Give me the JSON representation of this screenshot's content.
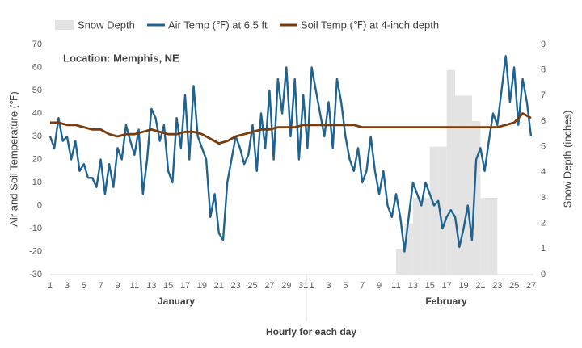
{
  "chart_data": {
    "type": "combo",
    "annotation": "Location: Memphis, NE",
    "ylabel": "Air and Soil Temperature (℉)",
    "y2label": "Snow Depth (inches)",
    "xlabel": "Hourly for each day",
    "month_labels": [
      "January",
      "February"
    ],
    "xlim": [
      1,
      58
    ],
    "xticks": [
      1,
      3,
      5,
      7,
      9,
      11,
      13,
      15,
      17,
      19,
      21,
      23,
      25,
      27,
      29,
      31,
      {
        "value": 32,
        "label": "1"
      },
      {
        "value": 34,
        "label": "3"
      },
      {
        "value": 36,
        "label": "5"
      },
      {
        "value": 38,
        "label": "7"
      },
      {
        "value": 40,
        "label": "9"
      },
      {
        "value": 42,
        "label": "11"
      },
      {
        "value": 44,
        "label": "13"
      },
      {
        "value": 46,
        "label": "15"
      },
      {
        "value": 48,
        "label": "17"
      },
      {
        "value": 50,
        "label": "19"
      },
      {
        "value": 52,
        "label": "21"
      },
      {
        "value": 54,
        "label": "23"
      },
      {
        "value": 56,
        "label": "25"
      },
      {
        "value": 58,
        "label": "27"
      }
    ],
    "ylim": [
      -30,
      70
    ],
    "yticks": [
      -30,
      -20,
      -10,
      0,
      10,
      20,
      30,
      40,
      50,
      60,
      70
    ],
    "y2lim": [
      0,
      9
    ],
    "y2ticks": [
      0,
      1,
      2,
      3,
      4,
      5,
      6,
      7,
      8,
      9
    ],
    "grid": false,
    "series": [
      {
        "name": "Snow Depth",
        "type": "bar",
        "axis": "y2",
        "color": "#e3e3e3",
        "x": [
          42,
          43,
          44,
          45,
          46,
          47,
          48,
          49,
          50,
          51,
          52,
          53
        ],
        "values": [
          1,
          2,
          3,
          3,
          5,
          5,
          8,
          7,
          7,
          6,
          3,
          3
        ]
      },
      {
        "name": "Air Temp (℉) at 6.5 ft",
        "type": "line",
        "color": "#1f6391",
        "x": [
          1,
          1.5,
          2,
          2.5,
          3,
          3.5,
          4,
          4.5,
          5,
          5.5,
          6,
          6.5,
          7,
          7.5,
          8,
          8.5,
          9,
          9.5,
          10,
          10.5,
          11,
          11.5,
          12,
          12.5,
          13,
          13.5,
          14,
          14.5,
          15,
          15.5,
          16,
          16.5,
          17,
          17.5,
          18,
          18.5,
          19,
          19.5,
          20,
          20.5,
          21,
          21.5,
          22,
          22.5,
          23,
          23.5,
          24,
          24.5,
          25,
          25.5,
          26,
          26.5,
          27,
          27.5,
          28,
          28.5,
          29,
          29.5,
          30,
          30.5,
          31,
          31.5,
          32,
          32.5,
          33,
          33.5,
          34,
          34.5,
          35,
          35.5,
          36,
          36.5,
          37,
          37.5,
          38,
          38.5,
          39,
          39.5,
          40,
          40.5,
          41,
          41.5,
          42,
          42.5,
          43,
          43.5,
          44,
          44.5,
          45,
          45.5,
          46,
          46.5,
          47,
          47.5,
          48,
          48.5,
          49,
          49.5,
          50,
          50.5,
          51,
          51.5,
          52,
          52.5,
          53,
          53.5,
          54,
          54.5,
          55,
          55.5,
          56,
          56.5,
          57,
          57.5,
          58
        ],
        "values": [
          30,
          25,
          38,
          28,
          30,
          20,
          28,
          15,
          18,
          12,
          12,
          8,
          20,
          5,
          18,
          8,
          25,
          20,
          35,
          28,
          22,
          33,
          5,
          20,
          42,
          38,
          28,
          35,
          15,
          10,
          38,
          25,
          48,
          20,
          52,
          30,
          25,
          20,
          -5,
          5,
          -12,
          -15,
          10,
          20,
          30,
          25,
          18,
          22,
          35,
          15,
          40,
          25,
          50,
          20,
          55,
          40,
          60,
          30,
          55,
          20,
          48,
          25,
          60,
          50,
          40,
          30,
          45,
          25,
          55,
          45,
          30,
          20,
          15,
          25,
          10,
          15,
          30,
          15,
          5,
          15,
          0,
          -5,
          5,
          -5,
          -20,
          -5,
          10,
          5,
          0,
          10,
          5,
          0,
          2,
          -10,
          -5,
          -2,
          -5,
          -18,
          -10,
          0,
          -15,
          20,
          25,
          15,
          28,
          40,
          35,
          50,
          65,
          45,
          60,
          35,
          55,
          45,
          30
        ]
      },
      {
        "name": "Soil Temp (℉) at 4-inch depth",
        "type": "line",
        "color": "#7b3b0a",
        "x": [
          1,
          2,
          3,
          4,
          5,
          6,
          7,
          8,
          9,
          10,
          11,
          12,
          13,
          14,
          15,
          16,
          17,
          18,
          19,
          20,
          21,
          22,
          23,
          24,
          25,
          26,
          27,
          28,
          29,
          30,
          31,
          32,
          33,
          34,
          35,
          36,
          37,
          38,
          39,
          40,
          41,
          42,
          43,
          44,
          45,
          46,
          47,
          48,
          49,
          50,
          51,
          52,
          53,
          54,
          55,
          56,
          57,
          58
        ],
        "values": [
          36,
          36,
          35,
          35,
          34,
          33,
          33,
          31,
          30,
          31,
          31,
          32,
          33,
          32,
          31,
          31,
          32,
          32,
          31,
          29,
          27,
          28,
          30,
          31,
          32,
          33,
          33,
          34,
          34,
          34,
          35,
          35,
          35,
          35,
          35,
          35,
          35,
          34,
          34,
          34,
          34,
          34,
          34,
          34,
          34,
          34,
          34,
          34,
          34,
          34,
          34,
          34,
          34,
          34,
          35,
          36,
          40,
          38
        ]
      }
    ]
  }
}
